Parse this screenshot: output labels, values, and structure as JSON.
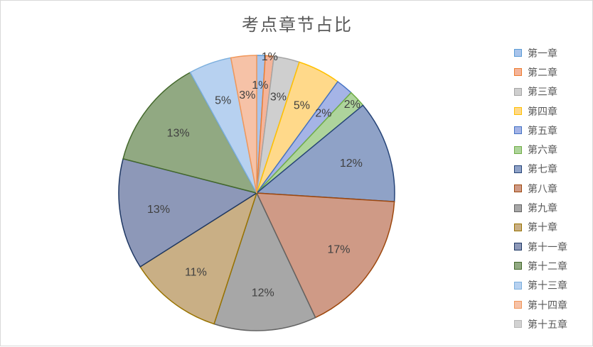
{
  "chart_data": {
    "type": "pie",
    "title": "考点章节占比",
    "legend_position": "right",
    "categories": [
      "第一章",
      "第二章",
      "第三章",
      "第四章",
      "第五章",
      "第六章",
      "第七章",
      "第八章",
      "第九章",
      "第十章",
      "第十一章",
      "第十二章",
      "第十三章",
      "第十四章",
      "第十五章"
    ],
    "values": [
      1,
      1,
      3,
      5,
      2,
      2,
      12,
      17,
      12,
      11,
      13,
      13,
      5,
      3,
      0
    ],
    "labels": [
      "1%",
      "1%",
      "3%",
      "5%",
      "2%",
      "2%",
      "12%",
      "17%",
      "12%",
      "11%",
      "13%",
      "13%",
      "5%",
      "3%",
      ""
    ],
    "fills": [
      "#a9c4eb",
      "#f4b49a",
      "#cfcfcf",
      "#ffd98a",
      "#a5b4e6",
      "#aed49c",
      "#8fa2c7",
      "#cf9a86",
      "#a7a7a7",
      "#c9af85",
      "#8d98b8",
      "#91a982",
      "#b7d1f0",
      "#f6c2a7",
      "#d2d2d2"
    ],
    "strokes": [
      "#5b9bd5",
      "#ed7d31",
      "#a5a5a5",
      "#ffc000",
      "#4472c4",
      "#70ad47",
      "#264478",
      "#9e480e",
      "#636363",
      "#997300",
      "#1f3864",
      "#43682b",
      "#7cafdd",
      "#f1975a",
      "#b7b7b7"
    ]
  }
}
